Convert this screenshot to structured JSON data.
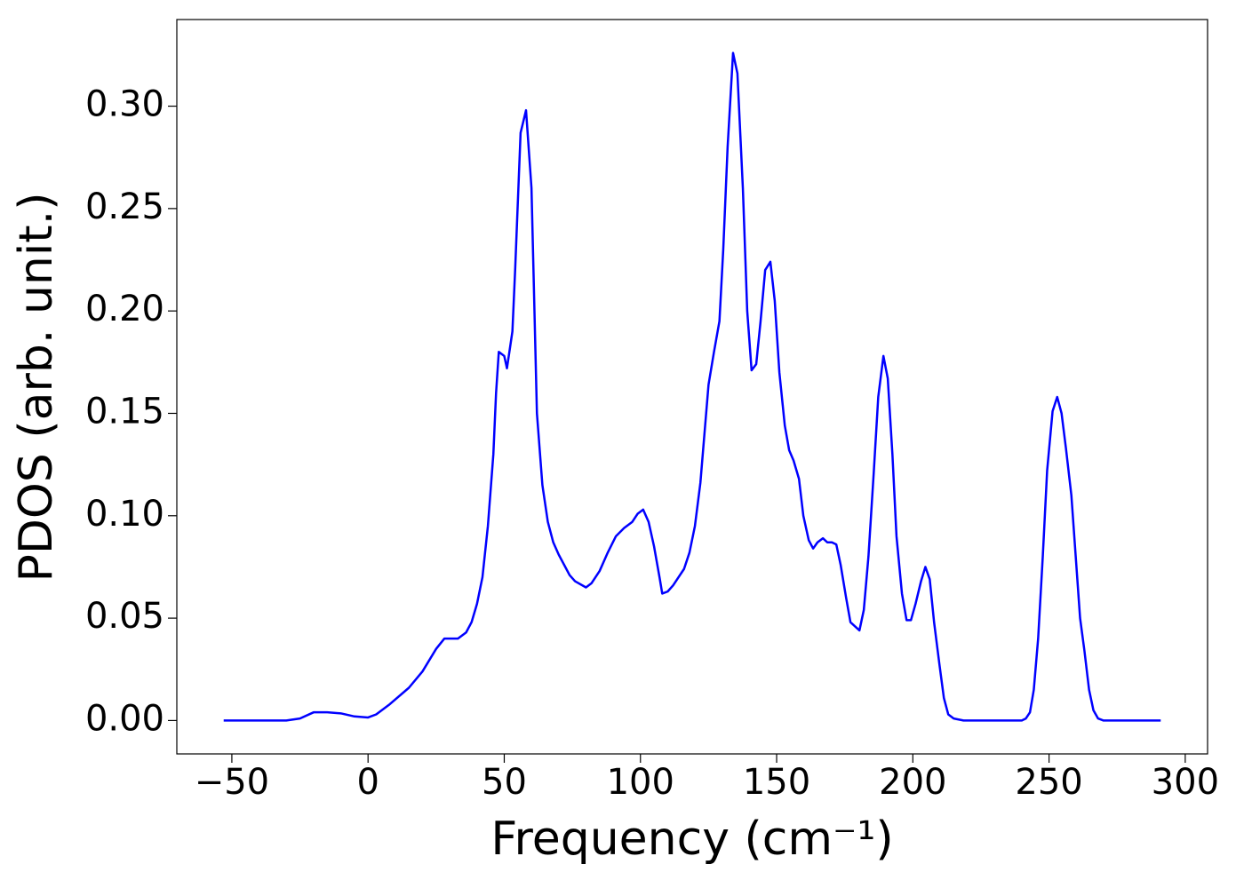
{
  "chart_data": {
    "type": "line",
    "xlabel": "Frequency (cm⁻¹)",
    "ylabel": "PDOS (arb. unit.)",
    "x": [
      -53,
      -30,
      -25,
      -20,
      -15,
      -10,
      -5,
      0,
      3,
      8,
      15,
      20,
      25,
      28,
      30,
      33,
      36,
      38,
      40,
      42,
      44,
      46,
      47,
      48,
      50,
      51,
      53,
      54,
      56,
      58,
      60,
      62,
      64,
      66,
      68,
      70,
      72,
      74,
      76,
      80,
      82,
      85,
      88,
      91,
      94,
      97,
      99,
      101,
      103,
      105,
      107,
      108,
      110,
      112,
      114,
      116,
      118,
      120,
      122,
      123.5,
      125,
      127,
      129,
      130.4,
      132,
      134,
      135.6,
      137.6,
      139.2,
      140.8,
      142.5,
      144.1,
      145.8,
      147.7,
      149.3,
      151,
      153,
      154.6,
      156.2,
      158.2,
      159.8,
      161.8,
      163.4,
      165,
      167,
      168.6,
      170.3,
      171.9,
      173.5,
      175.5,
      177.1,
      180.4,
      182,
      183.7,
      185.6,
      187.3,
      189.2,
      190.8,
      192.5,
      194,
      196,
      197.7,
      199.3,
      201,
      203,
      204.6,
      206.2,
      207.8,
      209.8,
      211.4,
      213,
      215,
      218.6,
      240,
      241.5,
      243,
      244.4,
      246,
      247.7,
      249.3,
      251.3,
      253,
      254.6,
      256.2,
      258.2,
      259.8,
      261.4,
      263,
      264.7,
      266.3,
      268,
      270,
      291
    ],
    "series": [
      {
        "color": "#0000ff",
        "values": [
          0,
          0,
          0.001,
          0.004,
          0.004,
          0.0035,
          0.002,
          0.0015,
          0.003,
          0.008,
          0.016,
          0.024,
          0.035,
          0.04,
          0.04,
          0.04,
          0.043,
          0.048,
          0.057,
          0.07,
          0.095,
          0.13,
          0.16,
          0.18,
          0.178,
          0.172,
          0.19,
          0.22,
          0.287,
          0.298,
          0.26,
          0.15,
          0.115,
          0.097,
          0.087,
          0.081,
          0.076,
          0.071,
          0.068,
          0.065,
          0.067,
          0.073,
          0.082,
          0.09,
          0.094,
          0.097,
          0.101,
          0.103,
          0.097,
          0.085,
          0.07,
          0.062,
          0.063,
          0.066,
          0.07,
          0.074,
          0.082,
          0.095,
          0.116,
          0.14,
          0.164,
          0.18,
          0.195,
          0.23,
          0.28,
          0.326,
          0.316,
          0.26,
          0.2,
          0.171,
          0.174,
          0.195,
          0.22,
          0.224,
          0.205,
          0.17,
          0.144,
          0.132,
          0.127,
          0.118,
          0.1,
          0.088,
          0.084,
          0.087,
          0.089,
          0.087,
          0.087,
          0.086,
          0.076,
          0.06,
          0.048,
          0.044,
          0.054,
          0.08,
          0.12,
          0.158,
          0.178,
          0.167,
          0.13,
          0.09,
          0.062,
          0.049,
          0.049,
          0.057,
          0.068,
          0.075,
          0.069,
          0.048,
          0.027,
          0.011,
          0.003,
          0.001,
          0,
          0,
          0.001,
          0.004,
          0.015,
          0.04,
          0.08,
          0.122,
          0.151,
          0.158,
          0.15,
          0.133,
          0.11,
          0.08,
          0.05,
          0.034,
          0.015,
          0.005,
          0.001,
          0,
          0
        ]
      }
    ],
    "xlim": [
      -70.2,
      308.2
    ],
    "ylim": [
      -0.0163,
      0.3423
    ],
    "xticks": [
      {
        "value": -50,
        "label": "−50"
      },
      0,
      50,
      100,
      150,
      200,
      250,
      300
    ],
    "yticks": [
      {
        "value": 0,
        "label": "0.00"
      },
      0.05,
      {
        "value": 0.1,
        "label": "0.10"
      },
      0.15,
      {
        "value": 0.2,
        "label": "0.20"
      },
      0.25,
      {
        "value": 0.3,
        "label": "0.30"
      }
    ],
    "grid": false
  }
}
